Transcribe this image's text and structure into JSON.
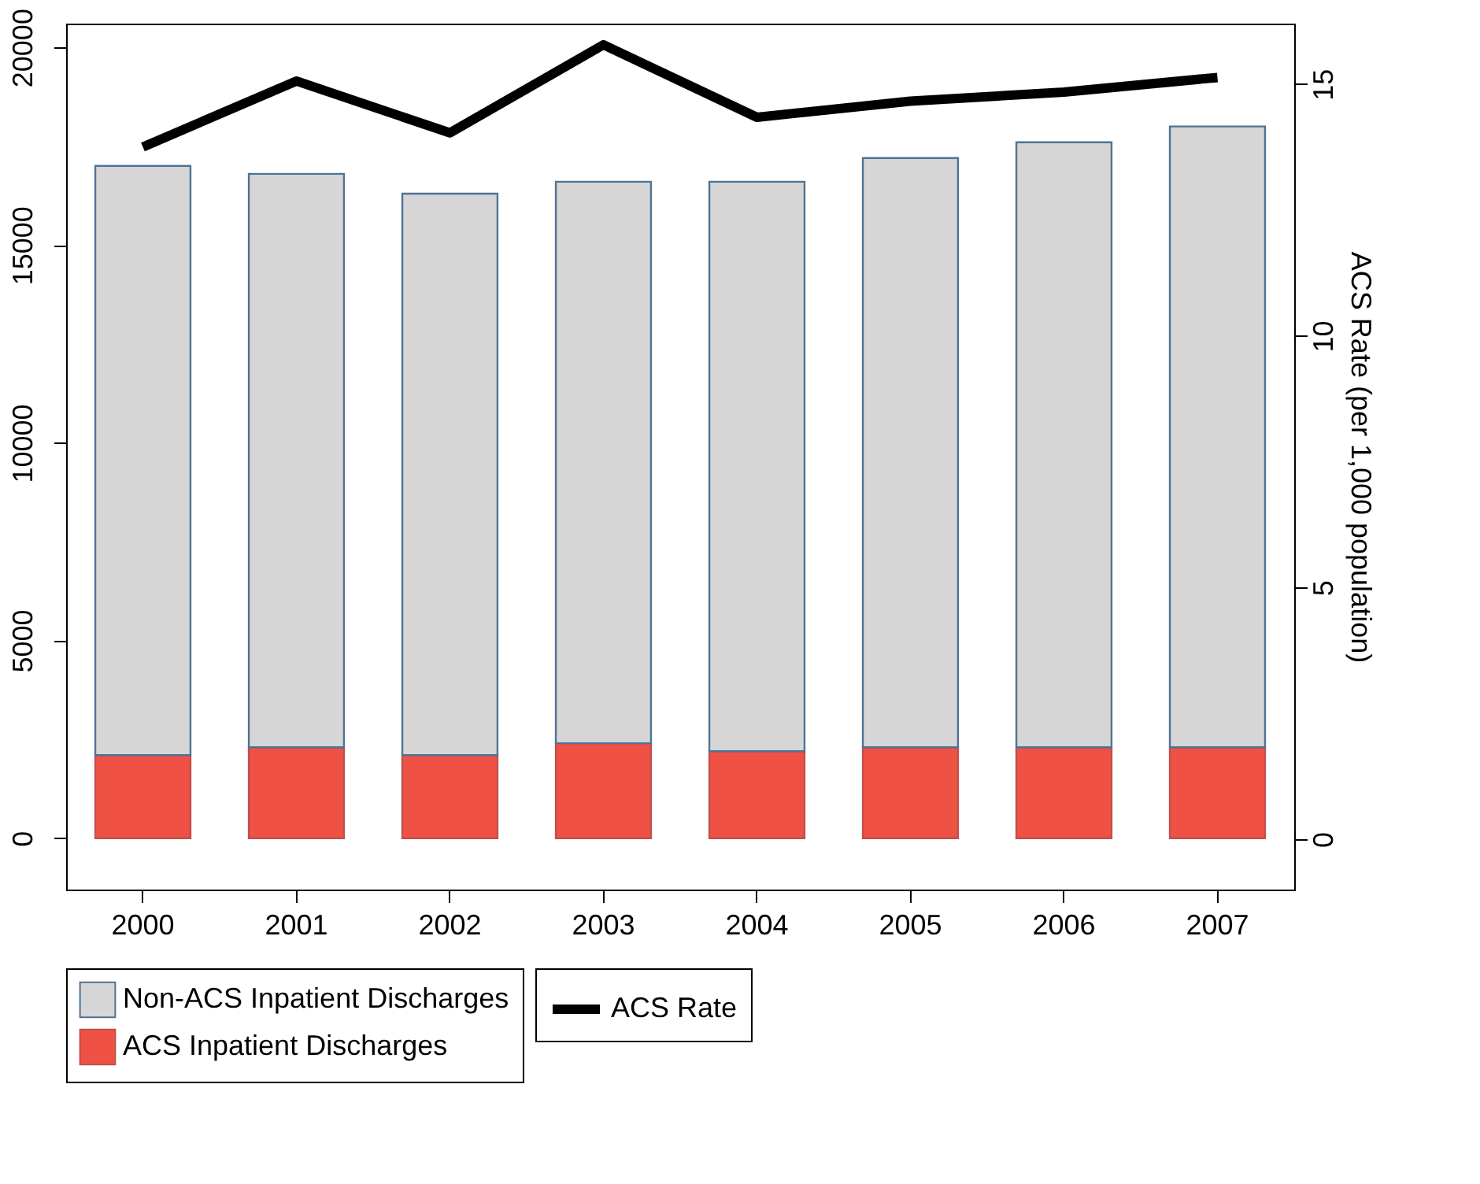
{
  "chart_data": {
    "type": "bar",
    "stacked": true,
    "categories": [
      "2000",
      "2001",
      "2002",
      "2003",
      "2004",
      "2005",
      "2006",
      "2007"
    ],
    "series": [
      {
        "name": "ACS Inpatient Discharges",
        "color": "#ef5245",
        "values": [
          2100,
          2300,
          2100,
          2400,
          2200,
          2300,
          2300,
          2300
        ]
      },
      {
        "name": "Non-ACS Inpatient Discharges",
        "color": "#d6d6d6",
        "values": [
          14900,
          14500,
          14200,
          14200,
          14400,
          14900,
          15300,
          15700
        ]
      },
      {
        "name": "ACS Rate",
        "type": "line",
        "axis": "y2",
        "color": "#000000",
        "values": [
          13.75,
          15.06,
          14.03,
          15.78,
          14.34,
          14.66,
          14.84,
          15.13
        ]
      }
    ],
    "ylim": [
      -1300,
      20600
    ],
    "yticks": [
      0,
      5000,
      10000,
      15000,
      20000
    ],
    "y2lim": [
      -1,
      16.2
    ],
    "y2ticks": [
      0,
      5,
      10,
      15
    ],
    "y2label": "ACS Rate (per 1,000 population)",
    "grid": false,
    "legend": "bottom",
    "line_style": "solid",
    "marker": "none"
  }
}
